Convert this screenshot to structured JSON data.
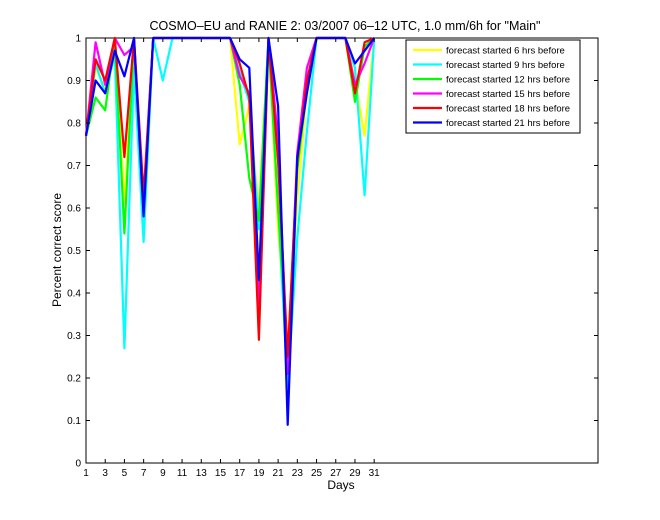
{
  "chart_data": {
    "type": "line",
    "title": "COSMO–EU and RANIE 2: 03/2007 06–12 UTC, 1.0 mm/6h for \"Main\"",
    "xlabel": "Days",
    "ylabel": "Percent correct score",
    "xlim": [
      1,
      54.3
    ],
    "ylim": [
      0,
      1
    ],
    "xticks": [
      1,
      3,
      5,
      7,
      9,
      11,
      13,
      15,
      17,
      19,
      21,
      23,
      25,
      27,
      29,
      31
    ],
    "yticks": [
      0,
      0.1,
      0.2,
      0.3,
      0.4,
      0.5,
      0.6,
      0.7,
      0.8,
      0.9,
      1
    ],
    "ytick_labels": [
      "0",
      "0.1",
      "0.2",
      "0.3",
      "0.4",
      "0.5",
      "0.6",
      "0.7",
      "0.8",
      "0.9",
      "1"
    ],
    "grid": false,
    "legend_position": "top-right",
    "series": [
      {
        "name": "forecast started 6 hrs before",
        "color": "#ffff00",
        "points": [
          [
            1,
            0.77
          ],
          [
            2,
            0.93
          ],
          [
            3,
            0.88
          ],
          [
            4,
            0.99
          ],
          [
            5,
            0.61
          ],
          [
            6,
            1
          ],
          [
            7,
            0.6
          ],
          [
            8,
            1
          ],
          [
            9,
            1
          ],
          [
            10,
            1
          ],
          [
            11,
            1
          ],
          [
            12,
            1
          ],
          [
            13,
            1
          ],
          [
            14,
            1
          ],
          [
            15,
            1
          ],
          [
            16,
            1
          ],
          [
            17,
            0.75
          ],
          [
            18,
            0.84
          ],
          [
            19,
            0.59
          ],
          [
            20,
            1
          ],
          [
            21,
            0.55
          ],
          [
            22,
            0.27
          ],
          [
            23,
            0.62
          ],
          [
            24,
            0.88
          ],
          [
            25,
            1
          ],
          [
            26,
            1
          ],
          [
            27,
            1
          ],
          [
            28,
            1
          ],
          [
            29,
            0.9
          ],
          [
            30,
            0.77
          ],
          [
            31,
            1
          ]
        ]
      },
      {
        "name": "forecast started 9 hrs before",
        "color": "#00ffff",
        "points": [
          [
            1,
            0.77
          ],
          [
            2,
            0.94
          ],
          [
            3,
            0.87
          ],
          [
            4,
            0.96
          ],
          [
            5,
            0.27
          ],
          [
            6,
            0.93
          ],
          [
            7,
            0.52
          ],
          [
            8,
            1
          ],
          [
            9,
            0.9
          ],
          [
            10,
            1
          ],
          [
            11,
            1
          ],
          [
            12,
            1
          ],
          [
            13,
            1
          ],
          [
            14,
            1
          ],
          [
            15,
            1
          ],
          [
            16,
            1
          ],
          [
            17,
            0.92
          ],
          [
            18,
            0.85
          ],
          [
            19,
            0.55
          ],
          [
            20,
            1
          ],
          [
            21,
            0.6
          ],
          [
            22,
            0.18
          ],
          [
            23,
            0.53
          ],
          [
            24,
            0.78
          ],
          [
            25,
            1
          ],
          [
            26,
            1
          ],
          [
            27,
            1
          ],
          [
            28,
            1
          ],
          [
            29,
            0.93
          ],
          [
            30,
            0.63
          ],
          [
            31,
            1
          ]
        ]
      },
      {
        "name": "forecast started 12 hrs before",
        "color": "#00ff00",
        "points": [
          [
            1,
            0.77
          ],
          [
            2,
            0.86
          ],
          [
            3,
            0.83
          ],
          [
            4,
            1
          ],
          [
            5,
            0.54
          ],
          [
            6,
            1
          ],
          [
            7,
            0.59
          ],
          [
            8,
            1
          ],
          [
            9,
            1
          ],
          [
            10,
            1
          ],
          [
            11,
            1
          ],
          [
            12,
            1
          ],
          [
            13,
            1
          ],
          [
            14,
            1
          ],
          [
            15,
            1
          ],
          [
            16,
            1
          ],
          [
            17,
            0.89
          ],
          [
            18,
            0.67
          ],
          [
            19,
            0.57
          ],
          [
            20,
            1
          ],
          [
            21,
            0.6
          ],
          [
            22,
            0.25
          ],
          [
            23,
            0.69
          ],
          [
            24,
            0.88
          ],
          [
            25,
            1
          ],
          [
            26,
            1
          ],
          [
            27,
            1
          ],
          [
            28,
            1
          ],
          [
            29,
            0.85
          ],
          [
            30,
            0.98
          ],
          [
            31,
            1
          ]
        ]
      },
      {
        "name": "forecast started 15 hrs before",
        "color": "#ff00ff",
        "points": [
          [
            1,
            0.77
          ],
          [
            2,
            0.99
          ],
          [
            3,
            0.89
          ],
          [
            4,
            1
          ],
          [
            5,
            0.96
          ],
          [
            6,
            0.98
          ],
          [
            7,
            0.61
          ],
          [
            8,
            1
          ],
          [
            9,
            1
          ],
          [
            10,
            1
          ],
          [
            11,
            1
          ],
          [
            12,
            1
          ],
          [
            13,
            1
          ],
          [
            14,
            1
          ],
          [
            15,
            1
          ],
          [
            16,
            1
          ],
          [
            17,
            0.91
          ],
          [
            18,
            0.87
          ],
          [
            19,
            0.36
          ],
          [
            20,
            1
          ],
          [
            21,
            0.76
          ],
          [
            22,
            0.21
          ],
          [
            23,
            0.73
          ],
          [
            24,
            0.93
          ],
          [
            25,
            1
          ],
          [
            26,
            1
          ],
          [
            27,
            1
          ],
          [
            28,
            1
          ],
          [
            29,
            0.89
          ],
          [
            30,
            0.94
          ],
          [
            31,
            1
          ]
        ]
      },
      {
        "name": "forecast started 18 hrs before",
        "color": "#ff0000",
        "points": [
          [
            1,
            0.77
          ],
          [
            2,
            0.95
          ],
          [
            3,
            0.9
          ],
          [
            4,
            1
          ],
          [
            5,
            0.72
          ],
          [
            6,
            1
          ],
          [
            7,
            0.63
          ],
          [
            8,
            1
          ],
          [
            9,
            1
          ],
          [
            10,
            1
          ],
          [
            11,
            1
          ],
          [
            12,
            1
          ],
          [
            13,
            1
          ],
          [
            14,
            1
          ],
          [
            15,
            1
          ],
          [
            16,
            1
          ],
          [
            17,
            0.94
          ],
          [
            18,
            0.86
          ],
          [
            19,
            0.29
          ],
          [
            20,
            1
          ],
          [
            21,
            0.71
          ],
          [
            22,
            0.25
          ],
          [
            23,
            0.71
          ],
          [
            24,
            0.9
          ],
          [
            25,
            1
          ],
          [
            26,
            1
          ],
          [
            27,
            1
          ],
          [
            28,
            1
          ],
          [
            29,
            0.87
          ],
          [
            30,
            0.99
          ],
          [
            31,
            1
          ]
        ]
      },
      {
        "name": "forecast started 21 hrs before",
        "color": "#0000ff",
        "points": [
          [
            1,
            0.77
          ],
          [
            2,
            0.9
          ],
          [
            3,
            0.87
          ],
          [
            4,
            0.97
          ],
          [
            5,
            0.91
          ],
          [
            6,
            1
          ],
          [
            7,
            0.58
          ],
          [
            8,
            1
          ],
          [
            9,
            1
          ],
          [
            10,
            1
          ],
          [
            11,
            1
          ],
          [
            12,
            1
          ],
          [
            13,
            1
          ],
          [
            14,
            1
          ],
          [
            15,
            1
          ],
          [
            16,
            1
          ],
          [
            17,
            0.95
          ],
          [
            18,
            0.93
          ],
          [
            19,
            0.43
          ],
          [
            20,
            1
          ],
          [
            21,
            0.84
          ],
          [
            22,
            0.09
          ],
          [
            23,
            0.72
          ],
          [
            24,
            0.87
          ],
          [
            25,
            1
          ],
          [
            26,
            1
          ],
          [
            27,
            1
          ],
          [
            28,
            1
          ],
          [
            29,
            0.94
          ],
          [
            30,
            0.97
          ],
          [
            31,
            1
          ]
        ]
      }
    ]
  }
}
